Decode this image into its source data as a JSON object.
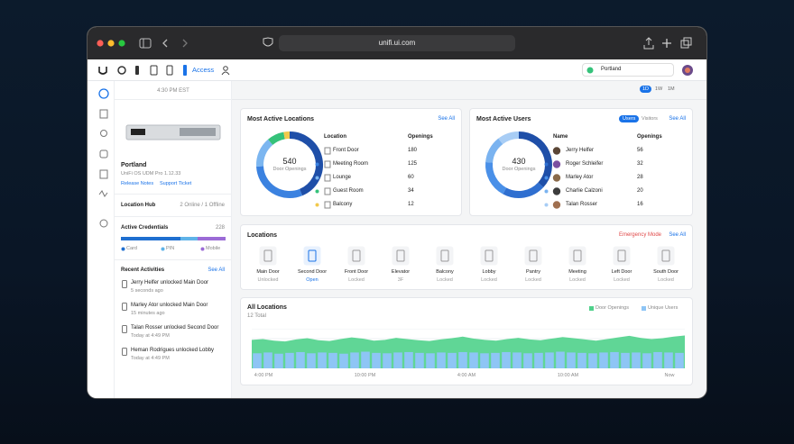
{
  "browser": {
    "url": "unifi.ui.com"
  },
  "nav": {
    "app": "Access",
    "site": "Portland"
  },
  "sidebar": {
    "time": "4:30 PM EST",
    "device_name": "Portland",
    "device_model": "UniFi OS UDM Pro 1.12.33",
    "links": [
      "Release Notes",
      "Support Ticket"
    ],
    "location_hub": {
      "label": "Location Hub",
      "status": "2 Online / 1 Offline"
    },
    "credentials": {
      "label": "Active Credentials",
      "total": 228,
      "legend": [
        "Card",
        "PIN",
        "Mobile"
      ]
    },
    "activities": {
      "title": "Recent Activities",
      "see_all": "See All",
      "items": [
        {
          "text": "Jerry Helfer unlocked Main Door",
          "time": "5 seconds ago"
        },
        {
          "text": "Marley Ator unlocked Main Door",
          "time": "15 minutes ago"
        },
        {
          "text": "Talan Rosser unlocked Second Door",
          "time": "Today at 4:49 PM"
        },
        {
          "text": "Heman Rodrigues unlocked Lobby",
          "time": "Today at 4:49 PM"
        }
      ]
    }
  },
  "range_tabs": [
    "1D",
    "1W",
    "1M"
  ],
  "active_locations": {
    "title": "Most Active Locations",
    "see_all": "See All",
    "total": 540,
    "total_label": "Door Openings",
    "columns": [
      "Location",
      "Openings"
    ],
    "rows": [
      {
        "name": "Front Door",
        "openings": 180,
        "color": "#1f4fa8"
      },
      {
        "name": "Meeting Room",
        "openings": 125,
        "color": "#3b82e0"
      },
      {
        "name": "Lounge",
        "openings": 60,
        "color": "#7cb6f0"
      },
      {
        "name": "Guest Room",
        "openings": 34,
        "color": "#35c27a"
      },
      {
        "name": "Balcony",
        "openings": 12,
        "color": "#f2c94c"
      }
    ]
  },
  "active_users": {
    "title": "Most Active Users",
    "tabs": [
      "Users",
      "Visitors"
    ],
    "see_all": "See All",
    "total": 430,
    "total_label": "Door Openings",
    "columns": [
      "Name",
      "Openings"
    ],
    "rows": [
      {
        "name": "Jerry Helfer",
        "openings": 56,
        "color": "#1f4fa8"
      },
      {
        "name": "Roger Schleifer",
        "openings": 32,
        "color": "#2f6fd0"
      },
      {
        "name": "Marley Ator",
        "openings": 28,
        "color": "#4a90e8"
      },
      {
        "name": "Charlie Calzoni",
        "openings": 20,
        "color": "#7ab3f0"
      },
      {
        "name": "Talan Rosser",
        "openings": 16,
        "color": "#a8cdf5"
      }
    ]
  },
  "locations": {
    "title": "Locations",
    "emergency": "Emergency Mode",
    "see_all": "See All",
    "doors": [
      {
        "name": "Main Door",
        "status": "Unlocked"
      },
      {
        "name": "Second Door",
        "status": "Open"
      },
      {
        "name": "Front Door",
        "status": "Locked"
      },
      {
        "name": "Elevator",
        "status": "3F"
      },
      {
        "name": "Balcony",
        "status": "Locked"
      },
      {
        "name": "Lobby",
        "status": "Locked"
      },
      {
        "name": "Pantry",
        "status": "Locked"
      },
      {
        "name": "Meeting",
        "status": "Locked"
      },
      {
        "name": "Left Door",
        "status": "Locked"
      },
      {
        "name": "South Door",
        "status": "Locked"
      }
    ]
  },
  "chart_data": {
    "type": "area",
    "title": "All Locations",
    "subtitle": "12 Total",
    "ylim": [
      0,
      100
    ],
    "xticks": [
      "4:00 PM",
      "10:00 PM",
      "4:00 AM",
      "10:00 AM",
      "Now"
    ],
    "series": [
      {
        "name": "Door Openings",
        "type": "area",
        "color": "#4fd18b",
        "values": [
          72,
          74,
          70,
          68,
          73,
          76,
          71,
          69,
          74,
          78,
          75,
          70,
          72,
          77,
          74,
          71,
          69,
          73,
          76,
          80,
          75,
          72,
          70,
          74,
          77,
          73,
          71,
          75,
          79,
          76,
          73,
          70,
          74,
          78,
          82,
          77,
          74,
          76,
          80,
          83
        ]
      },
      {
        "name": "Unique Users",
        "type": "bar",
        "color": "#8ec5f5",
        "values": [
          38,
          40,
          37,
          39,
          41,
          38,
          40,
          39,
          37,
          40,
          42,
          39,
          38,
          40,
          41,
          39,
          38,
          40,
          39,
          41,
          40,
          38,
          39,
          41,
          40,
          38,
          39,
          40,
          42,
          40,
          39,
          38,
          40,
          41,
          39,
          40,
          38,
          41,
          40,
          39
        ]
      }
    ]
  }
}
